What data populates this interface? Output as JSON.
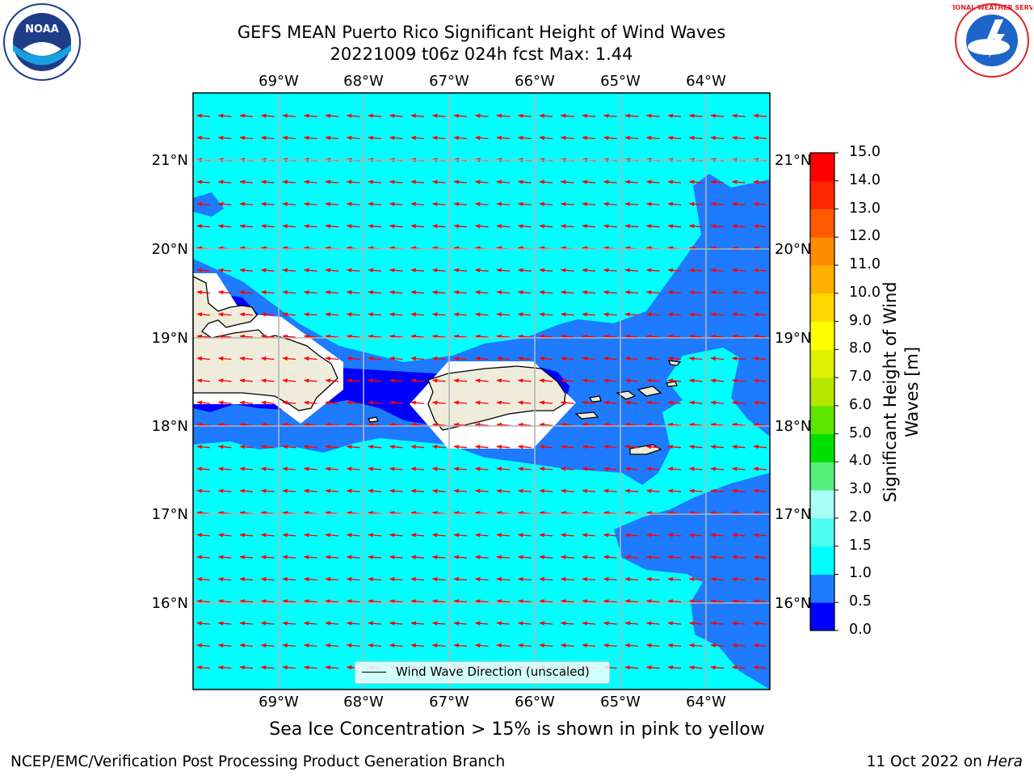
{
  "title_line1": "GEFS MEAN Puerto Rico Significant Height of Wind Waves",
  "title_line2": "20221009 t06z 024h fcst   Max: 1.44",
  "lon_labels": [
    "69°W",
    "68°W",
    "67°W",
    "66°W",
    "65°W",
    "64°W"
  ],
  "lat_labels": [
    "21°N",
    "20°N",
    "19°N",
    "18°N",
    "17°N",
    "16°N"
  ],
  "colorbar": {
    "title_line1": "Significant Height of Wind",
    "title_line2": "Waves [m]",
    "ticks": [
      "0.0",
      "0.5",
      "1.0",
      "1.5",
      "2.0",
      "3.0",
      "4.0",
      "5.0",
      "6.0",
      "7.0",
      "8.0",
      "9.0",
      "10.0",
      "11.0",
      "12.0",
      "13.0",
      "14.0",
      "15.0"
    ],
    "colors": [
      "#0000ff",
      "#1e7aff",
      "#00ffff",
      "#4dfff0",
      "#aafff5",
      "#55f07a",
      "#00e000",
      "#5ce600",
      "#b4e600",
      "#dcf000",
      "#ffff00",
      "#ffd700",
      "#ffb000",
      "#ff8c00",
      "#ff5a00",
      "#ff2800",
      "#ff0000"
    ]
  },
  "legend": "Wind Wave Direction (unscaled)",
  "sea_ice_note": "Sea Ice Concentration > 15% is shown in pink to yellow",
  "footer_left": "NCEP/EMC/Verification Post Processing Product Generation Branch",
  "footer_right_prefix": "11 Oct 2022 on ",
  "footer_right_machine": "Hera",
  "logos": {
    "noaa": "NOAA",
    "nws": "NATIONAL WEATHER SERVICE"
  },
  "map_data": {
    "extent_lon": [
      -70.0,
      -63.25
    ],
    "extent_lat": [
      15.0,
      21.75
    ],
    "color_ocean_1_0_1_5": "#00ffff",
    "color_ocean_0_5_1_0": "#1e7aff",
    "color_ocean_0_0_0_5": "#0000ff",
    "color_land": "#efecdc",
    "color_arrow": "#ff0000",
    "grid": true,
    "arrow_direction": "westward"
  }
}
